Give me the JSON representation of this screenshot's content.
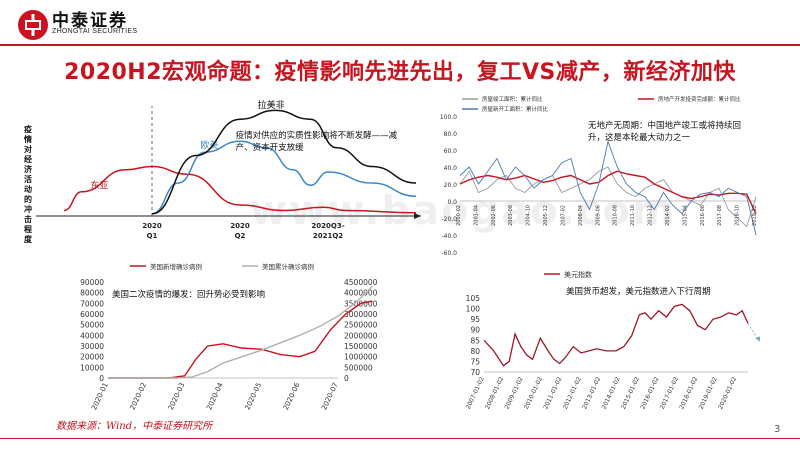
{
  "header": {
    "logo_cn": "中泰证券",
    "logo_en": "ZHONGTAI SECURITIES",
    "slide_title": "2020H2宏观命题：疫情影响先进先出，复工VS减产，新经济加快"
  },
  "footer": {
    "source": "数据来源：Wind，中泰证券研究所",
    "page_number": "3"
  },
  "colors": {
    "brand_red": "#c8141e",
    "series_red": "#c8141e",
    "series_blue": "#3a87c8",
    "series_gray": "#9a9a9a",
    "series_black": "#111111"
  },
  "chart_data": [
    {
      "type": "line",
      "panel": "top-left",
      "ylabel": "疫情对经济活动的冲击程度",
      "x_ticks": [
        "2020 Q1",
        "2020 Q2",
        "2020Q3-2021Q2"
      ],
      "annotation": "疫情对供应的实质性影响将不断发酵——减产、资本开支放缓",
      "series": [
        {
          "name": "东亚",
          "shape": [
            [
              -1,
              0.05
            ],
            [
              -0.8,
              0.22
            ],
            [
              -0.3,
              0.42
            ],
            [
              0,
              0.45
            ],
            [
              0.4,
              0.38
            ],
            [
              1,
              0.1
            ],
            [
              1.5,
              0.05
            ],
            [
              1.95,
              0.08
            ],
            [
              2.2,
              0.05
            ],
            [
              3,
              0.03
            ]
          ]
        },
        {
          "name": "欧美",
          "shape": [
            [
              0,
              0.02
            ],
            [
              0.3,
              0.3
            ],
            [
              0.6,
              0.58
            ],
            [
              1,
              0.68
            ],
            [
              1.3,
              0.62
            ],
            [
              1.6,
              0.42
            ],
            [
              1.8,
              0.28
            ],
            [
              2,
              0.4
            ],
            [
              2.5,
              0.3
            ],
            [
              3,
              0.18
            ]
          ]
        },
        {
          "name": "拉美非",
          "shape": [
            [
              0,
              0.02
            ],
            [
              0.5,
              0.55
            ],
            [
              1,
              0.88
            ],
            [
              1.4,
              0.96
            ],
            [
              1.8,
              0.88
            ],
            [
              2.1,
              0.62
            ],
            [
              2.5,
              0.45
            ],
            [
              3,
              0.3
            ]
          ]
        }
      ]
    },
    {
      "type": "line",
      "panel": "top-right",
      "legend": [
        "房屋竣工面积：累计同比",
        "房地产开发投资完成额：累计同比",
        "房屋新开工面积：累计同比"
      ],
      "yticks": [
        100.0,
        80.0,
        60.0,
        40.0,
        20.0,
        0.0,
        -20.0,
        -40.0,
        -60.0
      ],
      "ylim": [
        -60,
        100
      ],
      "x_ticks": [
        "2000-02",
        "2001-04",
        "2002-06",
        "2003-08",
        "2004-10",
        "2005-12",
        "2007-02",
        "2008-04",
        "2009-06",
        "2010-08",
        "2011-10",
        "2012-12",
        "2014-02",
        "2015-04",
        "2016-06",
        "2017-08",
        "2018-10",
        "2019-12"
      ],
      "annotation": "无地产无周期：中国地产竣工或将持续回升，这是本轮最大动力之一",
      "series": [
        {
          "name": "房屋竣工面积：累计同比",
          "values": [
            20,
            35,
            10,
            15,
            25,
            30,
            15,
            10,
            20,
            25,
            30,
            10,
            15,
            20,
            25,
            35,
            40,
            20,
            10,
            5,
            15,
            20,
            25,
            10,
            5,
            0,
            -5,
            10,
            15,
            -10,
            -20,
            -30,
            5
          ]
        },
        {
          "name": "房地产开发投资完成额：累计同比",
          "values": [
            20,
            25,
            28,
            30,
            28,
            25,
            27,
            30,
            26,
            22,
            24,
            28,
            30,
            25,
            20,
            22,
            30,
            35,
            32,
            30,
            28,
            20,
            15,
            10,
            5,
            3,
            5,
            8,
            7,
            9,
            9,
            8,
            -15
          ]
        },
        {
          "name": "房屋新开工面积：累计同比",
          "values": [
            30,
            40,
            20,
            35,
            50,
            25,
            40,
            30,
            15,
            25,
            30,
            45,
            50,
            10,
            -10,
            20,
            70,
            40,
            20,
            10,
            5,
            -10,
            10,
            -5,
            -15,
            0,
            8,
            10,
            5,
            15,
            10,
            5,
            -40
          ]
        }
      ]
    },
    {
      "type": "line",
      "panel": "bottom-left",
      "legend": [
        "美国新增确诊病例",
        "美国累计确诊病例"
      ],
      "annotation": "美国二次疫情的爆发：回升势必受到影响",
      "x_ticks": [
        "2020-01",
        "2020-02",
        "2020-03",
        "2020-04",
        "2020-05",
        "2020-06",
        "2020-07"
      ],
      "y_left_ticks": [
        0,
        10000,
        20000,
        30000,
        40000,
        50000,
        60000,
        70000,
        80000,
        90000
      ],
      "y_right_ticks": [
        0,
        500000,
        1000000,
        1500000,
        2000000,
        2500000,
        3000000,
        3500000,
        4000000,
        4500000
      ],
      "y_left_lim": [
        0,
        90000
      ],
      "y_right_lim": [
        0,
        4500000
      ],
      "series": [
        {
          "name": "美国新增确诊病例",
          "axis": "left",
          "x": [
            0,
            1.6,
            2.0,
            2.3,
            2.6,
            3.0,
            3.5,
            4.0,
            4.5,
            5.0,
            5.4,
            5.8,
            6.2,
            6.6,
            6.9
          ],
          "values": [
            0,
            0,
            2000,
            18000,
            30000,
            32000,
            28000,
            27000,
            22000,
            20000,
            25000,
            45000,
            60000,
            70000,
            72000
          ]
        },
        {
          "name": "美国累计确诊病例",
          "axis": "right",
          "x": [
            0,
            1.8,
            2.2,
            2.6,
            3.0,
            3.5,
            4.0,
            4.5,
            5.0,
            5.5,
            6.0,
            6.5,
            6.9
          ],
          "values": [
            0,
            0,
            50000,
            300000,
            700000,
            1000000,
            1300000,
            1650000,
            2000000,
            2400000,
            2900000,
            3600000,
            4300000
          ]
        }
      ]
    },
    {
      "type": "line",
      "panel": "bottom-right",
      "legend": [
        "美元指数"
      ],
      "annotation": "美国货币超发，美元指数进入下行周期",
      "yticks": [
        70,
        75,
        80,
        85,
        90,
        95,
        100,
        105
      ],
      "ylim": [
        70,
        105
      ],
      "x_ticks": [
        "2007-01-02",
        "2008-01-02",
        "2009-01-02",
        "2010-01-02",
        "2011-01-02",
        "2012-01-02",
        "2013-01-02",
        "2014-01-02",
        "2015-01-02",
        "2016-01-02",
        "2017-01-02",
        "2018-01-02",
        "2019-01-02",
        "2020-01-02"
      ],
      "series": [
        {
          "name": "美元指数",
          "x": [
            0,
            0.5,
            1.0,
            1.3,
            1.6,
            1.9,
            2.2,
            2.5,
            2.9,
            3.3,
            3.6,
            3.9,
            4.2,
            4.6,
            5.0,
            5.4,
            5.8,
            6.3,
            6.8,
            7.2,
            7.6,
            8.0,
            8.3,
            8.6,
            9.0,
            9.4,
            9.8,
            10.2,
            10.6,
            11.0,
            11.4,
            11.8,
            12.2,
            12.6,
            13.0,
            13.3,
            13.6
          ],
          "values": [
            85,
            80,
            73,
            75,
            88,
            82,
            78,
            76,
            86,
            80,
            76,
            74,
            77,
            82,
            79,
            80,
            81,
            80,
            80,
            82,
            87,
            97,
            98,
            95,
            99,
            96,
            101,
            102,
            99,
            92,
            90,
            95,
            96,
            98,
            97,
            99,
            93
          ]
        }
      ]
    }
  ],
  "watermark": "www.baogao.com"
}
